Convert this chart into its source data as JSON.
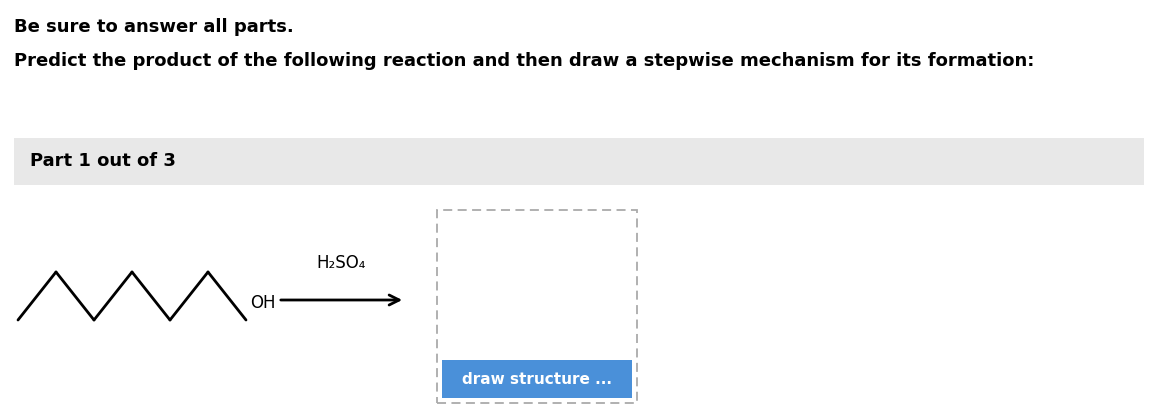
{
  "title_line1": "Be sure to answer all parts.",
  "title_line2": "Predict the product of the following reaction and then draw a stepwise mechanism for its formation:",
  "part_label": "Part 1 out of 3",
  "reagent_label": "H₂SO₄",
  "oh_label": "OH",
  "button_text": "draw structure ...",
  "bg_color": "#ffffff",
  "part_bg_color": "#e8e8e8",
  "button_color": "#4a90d9",
  "button_text_color": "#ffffff",
  "dashed_box_color": "#aaaaaa",
  "arrow_color": "#000000",
  "molecule_color": "#000000",
  "text_color": "#000000",
  "figw": 11.58,
  "figh": 4.18,
  "dpi": 100
}
